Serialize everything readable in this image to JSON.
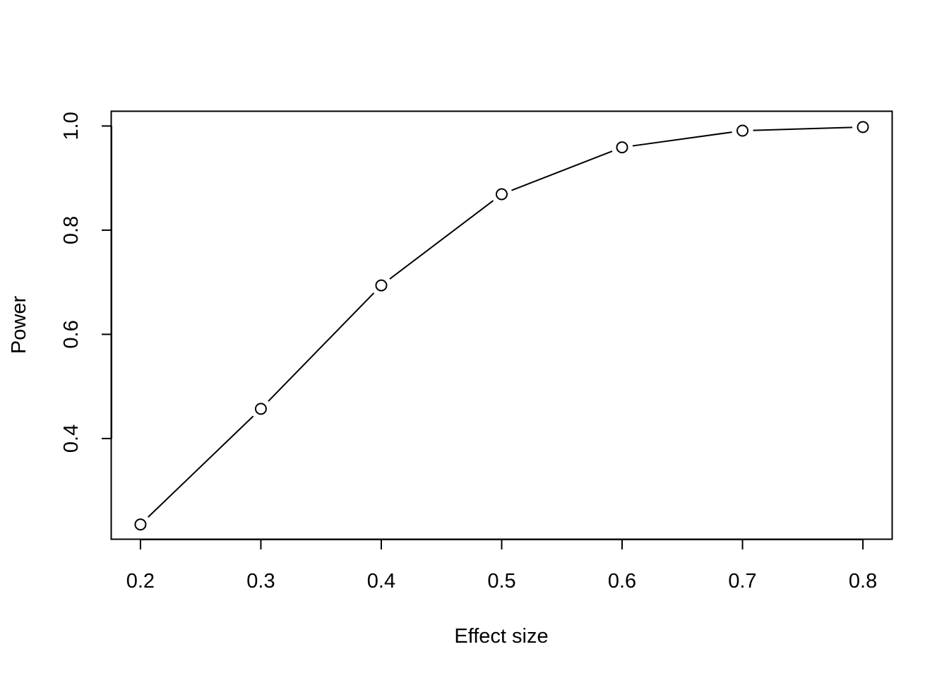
{
  "chart_data": {
    "type": "line",
    "title": "",
    "xlabel": "Effect size",
    "ylabel": "Power",
    "x": [
      0.2,
      0.3,
      0.4,
      0.5,
      0.6,
      0.7,
      0.8
    ],
    "series": [
      {
        "values": [
          0.235,
          0.457,
          0.694,
          0.869,
          0.959,
          0.991,
          0.998
        ],
        "marker": "open-circle",
        "line": "solid",
        "color": "#000000"
      }
    ],
    "xlim": [
      0.176,
      0.824
    ],
    "ylim": [
      0.206,
      1.029
    ],
    "x_ticks": [
      0.2,
      0.3,
      0.4,
      0.5,
      0.6,
      0.7,
      0.8
    ],
    "x_tick_labels": [
      "0.2",
      "0.3",
      "0.4",
      "0.5",
      "0.6",
      "0.7",
      "0.8"
    ],
    "y_ticks": [
      0.4,
      0.6,
      0.8,
      1.0
    ],
    "y_tick_labels": [
      "0.4",
      "0.6",
      "0.8",
      "1.0"
    ],
    "grid": false,
    "legend": "none"
  }
}
